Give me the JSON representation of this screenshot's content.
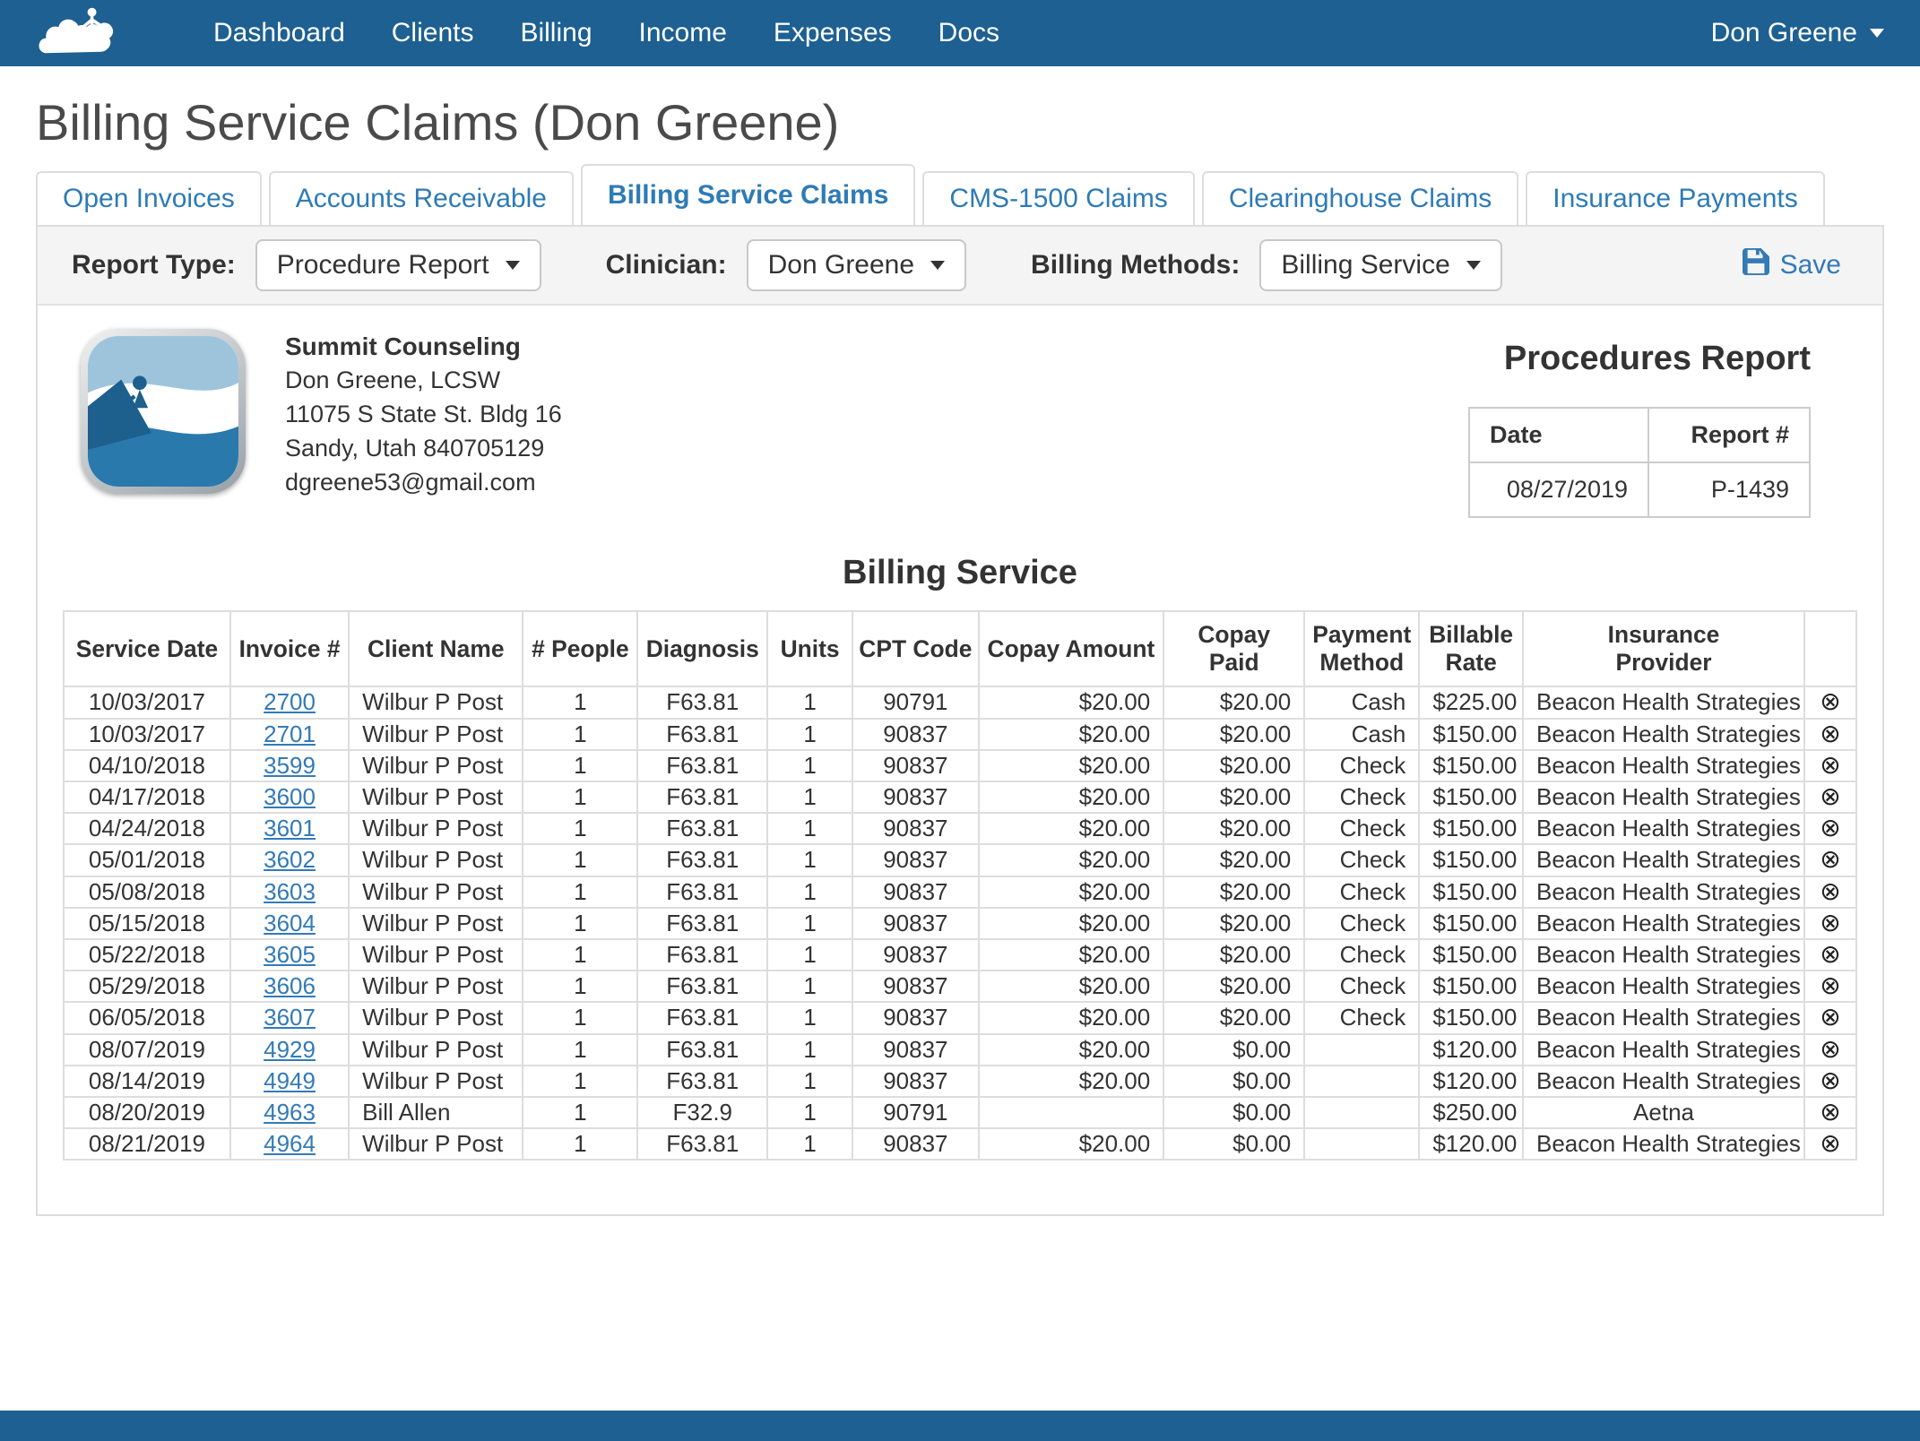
{
  "nav": {
    "items": [
      "Dashboard",
      "Clients",
      "Billing",
      "Income",
      "Expenses",
      "Docs"
    ],
    "user": "Don Greene"
  },
  "page": {
    "title": "Billing Service Claims (Don Greene)"
  },
  "tabs": [
    {
      "label": "Open Invoices",
      "active": false
    },
    {
      "label": "Accounts Receivable",
      "active": false
    },
    {
      "label": "Billing Service Claims",
      "active": true
    },
    {
      "label": "CMS-1500 Claims",
      "active": false
    },
    {
      "label": "Clearinghouse Claims",
      "active": false
    },
    {
      "label": "Insurance Payments",
      "active": false
    }
  ],
  "filters": {
    "report_type_label": "Report Type:",
    "report_type_value": "Procedure Report",
    "clinician_label": "Clinician:",
    "clinician_value": "Don Greene",
    "billing_methods_label": "Billing Methods:",
    "billing_methods_value": "Billing Service",
    "save_label": "Save"
  },
  "report": {
    "practice": {
      "name": "Summit Counseling",
      "clinician": "Don Greene, LCSW",
      "address_line1": "11075 S State St. Bldg 16",
      "address_line2": "Sandy, Utah 840705129",
      "email": "dgreene53@gmail.com"
    },
    "title": "Procedures Report",
    "meta": {
      "date_header": "Date",
      "report_header": "Report #",
      "date": "08/27/2019",
      "report_number": "P-1439"
    },
    "section_title": "Billing Service"
  },
  "table": {
    "headers": [
      "Service Date",
      "Invoice #",
      "Client Name",
      "# People",
      "Diagnosis",
      "Units",
      "CPT Code",
      "Copay Amount",
      "Copay Paid",
      "Payment\nMethod",
      "Billable\nRate",
      "Insurance\nProvider",
      ""
    ],
    "rows": [
      [
        "10/03/2017",
        "2700",
        "Wilbur P Post",
        "1",
        "F63.81",
        "1",
        "90791",
        "$20.00",
        "$20.00",
        "Cash",
        "$225.00",
        "Beacon Health Strategies"
      ],
      [
        "10/03/2017",
        "2701",
        "Wilbur P Post",
        "1",
        "F63.81",
        "1",
        "90837",
        "$20.00",
        "$20.00",
        "Cash",
        "$150.00",
        "Beacon Health Strategies"
      ],
      [
        "04/10/2018",
        "3599",
        "Wilbur P Post",
        "1",
        "F63.81",
        "1",
        "90837",
        "$20.00",
        "$20.00",
        "Check",
        "$150.00",
        "Beacon Health Strategies"
      ],
      [
        "04/17/2018",
        "3600",
        "Wilbur P Post",
        "1",
        "F63.81",
        "1",
        "90837",
        "$20.00",
        "$20.00",
        "Check",
        "$150.00",
        "Beacon Health Strategies"
      ],
      [
        "04/24/2018",
        "3601",
        "Wilbur P Post",
        "1",
        "F63.81",
        "1",
        "90837",
        "$20.00",
        "$20.00",
        "Check",
        "$150.00",
        "Beacon Health Strategies"
      ],
      [
        "05/01/2018",
        "3602",
        "Wilbur P Post",
        "1",
        "F63.81",
        "1",
        "90837",
        "$20.00",
        "$20.00",
        "Check",
        "$150.00",
        "Beacon Health Strategies"
      ],
      [
        "05/08/2018",
        "3603",
        "Wilbur P Post",
        "1",
        "F63.81",
        "1",
        "90837",
        "$20.00",
        "$20.00",
        "Check",
        "$150.00",
        "Beacon Health Strategies"
      ],
      [
        "05/15/2018",
        "3604",
        "Wilbur P Post",
        "1",
        "F63.81",
        "1",
        "90837",
        "$20.00",
        "$20.00",
        "Check",
        "$150.00",
        "Beacon Health Strategies"
      ],
      [
        "05/22/2018",
        "3605",
        "Wilbur P Post",
        "1",
        "F63.81",
        "1",
        "90837",
        "$20.00",
        "$20.00",
        "Check",
        "$150.00",
        "Beacon Health Strategies"
      ],
      [
        "05/29/2018",
        "3606",
        "Wilbur P Post",
        "1",
        "F63.81",
        "1",
        "90837",
        "$20.00",
        "$20.00",
        "Check",
        "$150.00",
        "Beacon Health Strategies"
      ],
      [
        "06/05/2018",
        "3607",
        "Wilbur P Post",
        "1",
        "F63.81",
        "1",
        "90837",
        "$20.00",
        "$20.00",
        "Check",
        "$150.00",
        "Beacon Health Strategies"
      ],
      [
        "08/07/2019",
        "4929",
        "Wilbur P Post",
        "1",
        "F63.81",
        "1",
        "90837",
        "$20.00",
        "$0.00",
        "",
        "$120.00",
        "Beacon Health Strategies"
      ],
      [
        "08/14/2019",
        "4949",
        "Wilbur P Post",
        "1",
        "F63.81",
        "1",
        "90837",
        "$20.00",
        "$0.00",
        "",
        "$120.00",
        "Beacon Health Strategies"
      ],
      [
        "08/20/2019",
        "4963",
        "Bill Allen",
        "1",
        "F32.9",
        "1",
        "90791",
        "",
        "$0.00",
        "",
        "$250.00",
        "Aetna"
      ],
      [
        "08/21/2019",
        "4964",
        "Wilbur P Post",
        "1",
        "F63.81",
        "1",
        "90837",
        "$20.00",
        "$0.00",
        "",
        "$120.00",
        "Beacon Health Strategies"
      ]
    ]
  },
  "icons": {
    "brand": "mountain-climbers-logo",
    "save": "save-icon",
    "dropdown": "chevron-down-icon",
    "delete_row": "circle-x-icon",
    "delete_glyph": "⊗"
  }
}
